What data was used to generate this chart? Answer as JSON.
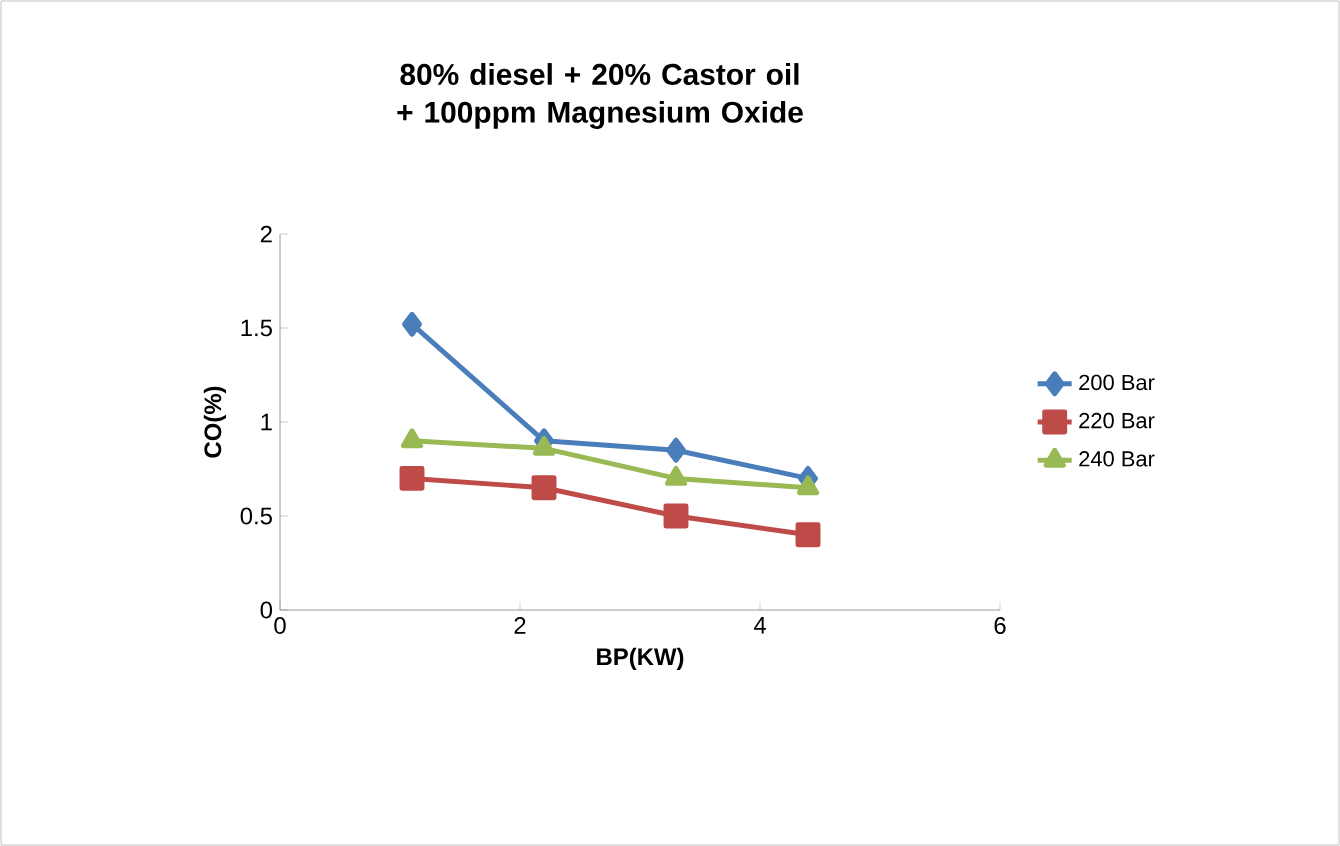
{
  "chart_data": {
    "type": "line",
    "title": "80% diesel + 20% Castor oil + 100ppm Magnesium Oxide",
    "xlabel": "BP(KW)",
    "ylabel": "CO(%)",
    "x": [
      1.1,
      2.2,
      3.3,
      4.4
    ],
    "series": [
      {
        "name": "200 Bar",
        "color": "#4a7ebb",
        "marker": "diamond",
        "values": [
          1.52,
          0.9,
          0.85,
          0.7
        ]
      },
      {
        "name": "220 Bar",
        "color": "#be4b48",
        "marker": "square",
        "values": [
          0.7,
          0.65,
          0.5,
          0.4
        ]
      },
      {
        "name": "240 Bar",
        "color": "#98b954",
        "marker": "triangle",
        "values": [
          0.9,
          0.86,
          0.7,
          0.65
        ]
      }
    ],
    "xlim": [
      0,
      6
    ],
    "xticks": [
      0,
      2,
      4,
      6
    ],
    "ylim": [
      0,
      2
    ],
    "yticks": [
      0,
      0.5,
      1,
      1.5,
      2
    ],
    "grid": false,
    "legend": "right"
  }
}
